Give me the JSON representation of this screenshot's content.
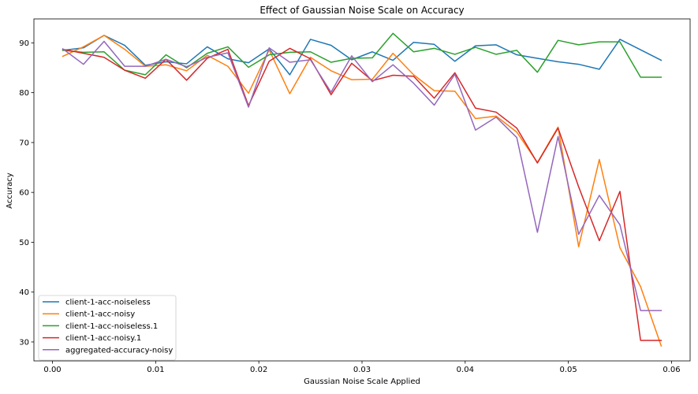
{
  "chart_data": {
    "type": "line",
    "title": "Effect of Gaussian Noise Scale on Accuracy",
    "xlabel": "Gaussian Noise Scale Applied",
    "ylabel": "Accuracy",
    "xlim": [
      -0.0018,
      0.0618
    ],
    "ylim": [
      26.2,
      94.8
    ],
    "xticks": [
      0.0,
      0.01,
      0.02,
      0.03,
      0.04,
      0.05,
      0.06
    ],
    "xtick_labels": [
      "0.00",
      "0.01",
      "0.02",
      "0.03",
      "0.04",
      "0.05",
      "0.06"
    ],
    "yticks": [
      30,
      40,
      50,
      60,
      70,
      80,
      90
    ],
    "ytick_labels": [
      "30",
      "40",
      "50",
      "60",
      "70",
      "80",
      "90"
    ],
    "grid": false,
    "legend_position": "lower-left",
    "x": [
      0.001,
      0.003,
      0.005,
      0.007,
      0.009,
      0.011,
      0.013,
      0.015,
      0.017,
      0.019,
      0.021,
      0.023,
      0.025,
      0.027,
      0.029,
      0.031,
      0.033,
      0.035,
      0.037,
      0.039,
      0.041,
      0.043,
      0.045,
      0.047,
      0.049,
      0.051,
      0.053,
      0.055,
      0.057,
      0.059
    ],
    "series": [
      {
        "name": "client-1-acc-noiseless",
        "color": "#1f77b4",
        "values": [
          88.5,
          89.0,
          91.5,
          89.5,
          85.5,
          86.2,
          85.8,
          89.2,
          86.8,
          86.0,
          88.8,
          83.6,
          90.7,
          89.5,
          86.6,
          88.2,
          86.5,
          90.1,
          89.7,
          86.3,
          89.4,
          89.6,
          87.6,
          86.9,
          86.2,
          85.7,
          84.7,
          90.7,
          88.6,
          86.5
        ]
      },
      {
        "name": "client-1-acc-noisy",
        "color": "#ff7f0e",
        "values": [
          87.3,
          89.2,
          91.5,
          88.7,
          85.3,
          85.6,
          84.4,
          87.5,
          85.3,
          79.9,
          88.6,
          79.8,
          87.1,
          84.4,
          82.6,
          82.7,
          87.9,
          83.6,
          80.4,
          80.3,
          74.8,
          75.3,
          72.1,
          66.0,
          73.1,
          49.1,
          66.6,
          48.9,
          41.1,
          29.2
        ]
      },
      {
        "name": "client-1-acc-noiseless.1",
        "color": "#2ca02c",
        "values": [
          88.5,
          88.1,
          88.2,
          84.5,
          83.6,
          87.6,
          85.0,
          87.9,
          89.2,
          85.1,
          87.6,
          88.1,
          88.2,
          86.1,
          86.9,
          87.0,
          91.9,
          88.2,
          88.9,
          87.7,
          89.1,
          87.7,
          88.5,
          84.1,
          90.5,
          89.6,
          90.2,
          90.2,
          83.1,
          83.1
        ]
      },
      {
        "name": "client-1-acc-noisy.1",
        "color": "#d62728",
        "values": [
          88.7,
          87.9,
          87.1,
          84.5,
          82.9,
          86.7,
          82.5,
          86.9,
          88.7,
          77.4,
          86.3,
          88.9,
          86.8,
          79.6,
          85.9,
          82.4,
          83.5,
          83.3,
          78.9,
          84.0,
          76.9,
          76.1,
          72.9,
          65.9,
          72.9,
          61.1,
          50.3,
          60.2,
          30.3,
          30.3
        ]
      },
      {
        "name": "aggregated-accuracy-noisy",
        "color": "#9467bd",
        "values": [
          88.8,
          85.7,
          90.3,
          85.3,
          85.3,
          86.7,
          85.2,
          87.1,
          88.0,
          77.1,
          89.0,
          86.1,
          86.6,
          80.1,
          87.4,
          82.2,
          85.6,
          81.9,
          77.5,
          83.7,
          72.5,
          75.1,
          71.0,
          52.0,
          71.2,
          51.6,
          59.4,
          53.5,
          36.3,
          36.3
        ]
      }
    ]
  }
}
